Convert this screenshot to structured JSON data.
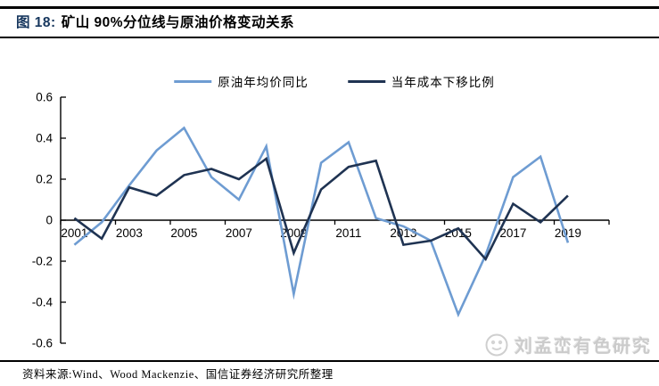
{
  "header": {
    "title_prefix": "图 18:",
    "title_main": "矿山 90%分位线与原油价格变动关系"
  },
  "footer": {
    "source_text": "资料来源:Wind、Wood Mackenzie、国信证券经济研究所整理"
  },
  "watermark": {
    "logo_icon": "circle-seal-logo",
    "text": "刘孟峦有色研究"
  },
  "colors": {
    "title_prefix": "#17375E",
    "oil_series": "#6E9CD2",
    "cost_series": "#1F3352",
    "axis": "#000000",
    "watermark": "#CBCBCB"
  },
  "chart_data": {
    "type": "line",
    "title": "矿山90%分位线与原油价格变动关系",
    "categories": [
      2001,
      2002,
      2003,
      2004,
      2005,
      2006,
      2007,
      2008,
      2009,
      2010,
      2011,
      2012,
      2013,
      2014,
      2015,
      2016,
      2017,
      2018,
      2019
    ],
    "x_tick_labels": [
      "2001",
      "2003",
      "2005",
      "2007",
      "2009",
      "2011",
      "2013",
      "2015",
      "2017",
      "2019"
    ],
    "y_ticks": [
      0.6,
      0.4,
      0.2,
      0,
      -0.2,
      -0.4,
      -0.6
    ],
    "y_tick_labels": [
      "0.6",
      "0.4",
      "0.2",
      "0",
      "-0.2",
      "-0.4",
      "-0.6"
    ],
    "ylim": [
      -0.6,
      0.6
    ],
    "grid": false,
    "legend_position": "top-center",
    "series": [
      {
        "name": "原油年均价同比",
        "color": "#6E9CD2",
        "values": [
          -0.12,
          -0.01,
          0.17,
          0.34,
          0.45,
          0.21,
          0.1,
          0.36,
          -0.36,
          0.28,
          0.38,
          0.01,
          -0.03,
          -0.1,
          -0.46,
          -0.17,
          0.21,
          0.31,
          -0.11
        ]
      },
      {
        "name": "当年成本下移比例",
        "color": "#1F3352",
        "values": [
          0.01,
          -0.09,
          0.16,
          0.12,
          0.22,
          0.25,
          0.2,
          0.3,
          -0.16,
          0.15,
          0.26,
          0.29,
          -0.12,
          -0.1,
          -0.04,
          -0.19,
          0.08,
          -0.01,
          0.12
        ]
      }
    ]
  }
}
